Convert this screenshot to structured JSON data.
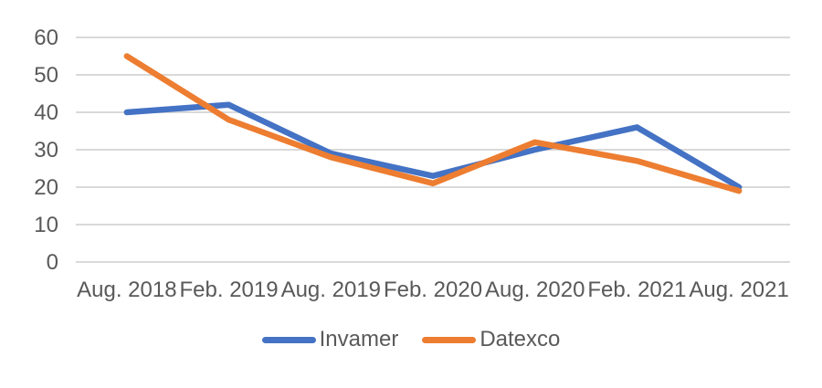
{
  "chart_data": {
    "type": "line",
    "categories": [
      "Aug. 2018",
      "Feb. 2019",
      "Aug. 2019",
      "Feb. 2020",
      "Aug. 2020",
      "Feb. 2021",
      "Aug. 2021"
    ],
    "series": [
      {
        "name": "Invamer",
        "color": "#4472C4",
        "values": [
          40,
          42,
          29,
          23,
          30,
          36,
          20
        ]
      },
      {
        "name": "Datexco",
        "color": "#ED7D31",
        "values": [
          55,
          38,
          28,
          21,
          32,
          27,
          19
        ]
      }
    ],
    "title": "",
    "xlabel": "",
    "ylabel": "",
    "ylim": [
      0,
      60
    ],
    "yticks": [
      0,
      10,
      20,
      30,
      40,
      50,
      60
    ],
    "grid": true,
    "gridline_color": "#D9D9D9",
    "text_color": "#595959",
    "legend_position": "bottom"
  }
}
